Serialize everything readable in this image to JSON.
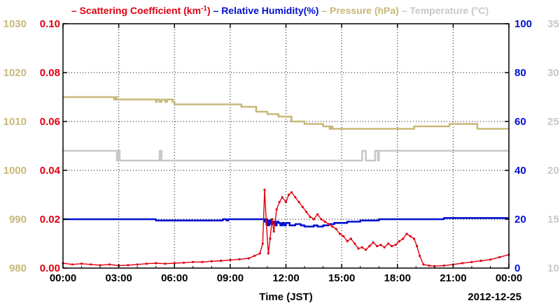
{
  "chart_data": {
    "type": "line",
    "legend": {
      "placement": "top",
      "entries": [
        {
          "name": "Scattering Coefficient (km",
          "sup": "-1",
          "suffix": ")",
          "color": "#e00010",
          "axis": "y_left_inner"
        },
        {
          "name": "Relative Humidity(%)",
          "sup": "",
          "suffix": "",
          "color": "#0010d0",
          "axis": "y_right_inner"
        },
        {
          "name": "Pressure (hPa)",
          "sup": "",
          "suffix": "",
          "color": "#c8b878",
          "axis": "y_left_outer"
        },
        {
          "name": "Temperature (°C)",
          "sup": "",
          "suffix": "",
          "color": "#c8c8c8",
          "axis": "y_right_outer"
        }
      ]
    },
    "xlabel": "Time (JST)",
    "date_label": "2012-12-25",
    "x_ticks": [
      "00:00",
      "03:00",
      "06:00",
      "09:00",
      "12:00",
      "15:00",
      "18:00",
      "21:00",
      "00:00"
    ],
    "xlim_hours": [
      0,
      24
    ],
    "grid": true,
    "axes": {
      "y_left_outer": {
        "ticks": [
          "980",
          "990",
          "1000",
          "1010",
          "1020",
          "1030"
        ],
        "lim": [
          980,
          1030
        ],
        "color": "#c8b878"
      },
      "y_left_inner": {
        "ticks": [
          "0.00",
          "0.02",
          "0.04",
          "0.06",
          "0.08",
          "0.10"
        ],
        "lim": [
          0,
          0.1
        ],
        "color": "#e00010"
      },
      "y_right_inner": {
        "ticks": [
          "0",
          "20",
          "40",
          "60",
          "80",
          "100"
        ],
        "lim": [
          0,
          100
        ],
        "color": "#0010d0"
      },
      "y_right_outer": {
        "ticks": [
          "10",
          "15",
          "20",
          "25",
          "30",
          "35"
        ],
        "lim": [
          10,
          35
        ],
        "color": "#c8c8c8"
      }
    },
    "series": [
      {
        "name": "Pressure (hPa)",
        "axis": "y_left_outer",
        "color": "#c8b878",
        "step": true,
        "x": [
          0,
          2.7,
          2.75,
          2.85,
          2.9,
          4.8,
          5.0,
          5.05,
          5.2,
          5.3,
          5.5,
          5.6,
          5.9,
          6.0,
          9.5,
          9.6,
          10.3,
          10.4,
          10.9,
          11.0,
          11.5,
          11.6,
          12.2,
          12.3,
          12.9,
          13.0,
          13.9,
          14.0,
          14.3,
          14.35,
          14.45,
          14.5,
          18.8,
          18.9,
          20.7,
          20.8,
          22.2,
          22.3,
          24
        ],
        "y": [
          1015,
          1015,
          1014.5,
          1015,
          1014.5,
          1014.5,
          1014,
          1014.5,
          1014,
          1014.5,
          1014,
          1014.5,
          1014,
          1013.5,
          1013.5,
          1013,
          1013,
          1012,
          1012,
          1011.5,
          1011.5,
          1011,
          1011,
          1010,
          1010,
          1009.5,
          1009.5,
          1009,
          1009,
          1008.5,
          1009,
          1008.5,
          1008.5,
          1009,
          1009,
          1009.5,
          1009.5,
          1008.5,
          1008.5
        ]
      },
      {
        "name": "Temperature (°C)",
        "axis": "y_right_outer",
        "color": "#c8c8c8",
        "step": true,
        "x": [
          0,
          2.85,
          2.9,
          2.95,
          3.05,
          5.1,
          5.2,
          5.3,
          16.0,
          16.1,
          16.3,
          16.7,
          16.8,
          16.95,
          17.0,
          24
        ],
        "y": [
          22,
          22,
          21,
          22,
          21,
          21,
          22,
          21,
          21,
          22,
          21,
          21,
          22,
          21,
          22,
          22
        ]
      },
      {
        "name": "Relative Humidity(%)",
        "axis": "y_right_inner",
        "color": "#0010d0",
        "step": true,
        "x": [
          0,
          4.9,
          5.0,
          8.5,
          8.6,
          8.8,
          8.9,
          9.0,
          10.8,
          10.85,
          10.9,
          11.0,
          11.1,
          11.2,
          11.3,
          11.4,
          11.5,
          11.6,
          11.7,
          11.8,
          11.9,
          12.0,
          12.2,
          12.5,
          12.8,
          13.0,
          13.3,
          13.5,
          13.7,
          14.0,
          14.3,
          14.6,
          15.0,
          15.3,
          15.6,
          16.0,
          16.5,
          17.0,
          17.5,
          18.0,
          18.5,
          19.0,
          19.5,
          20.0,
          20.5,
          21.0,
          21.5,
          22.0,
          22.5,
          23.0,
          23.5,
          24
        ],
        "y": [
          20,
          20,
          19.5,
          19.5,
          20,
          19.5,
          20,
          20,
          20,
          19,
          20,
          17.5,
          19.5,
          18,
          19,
          17.5,
          19,
          18.5,
          17.5,
          18.5,
          17.5,
          18.5,
          17.5,
          18,
          17.5,
          17,
          17,
          17.5,
          17,
          17.5,
          18,
          18.5,
          18.5,
          19,
          19,
          19.5,
          19.5,
          20,
          20,
          20,
          20,
          20,
          20,
          20,
          20.5,
          20.5,
          20.5,
          20.5,
          20.5,
          20.5,
          20.5,
          20.5
        ]
      },
      {
        "name": "Scattering Coefficient",
        "axis": "y_left_inner",
        "color": "#e00010",
        "step": false,
        "x": [
          0,
          0.5,
          1.0,
          1.5,
          2.0,
          2.5,
          3.0,
          3.5,
          4.0,
          4.5,
          5.0,
          5.5,
          6.0,
          6.5,
          7.0,
          7.5,
          8.0,
          8.5,
          9.0,
          9.5,
          10.0,
          10.3,
          10.6,
          10.75,
          10.85,
          10.95,
          11.05,
          11.15,
          11.25,
          11.35,
          11.5,
          11.65,
          11.8,
          12.0,
          12.15,
          12.3,
          12.5,
          12.7,
          12.9,
          13.1,
          13.3,
          13.5,
          13.7,
          13.9,
          14.1,
          14.3,
          14.5,
          14.7,
          14.9,
          15.1,
          15.3,
          15.5,
          15.7,
          15.9,
          16.1,
          16.3,
          16.5,
          16.7,
          16.9,
          17.1,
          17.3,
          17.5,
          17.7,
          17.9,
          18.1,
          18.3,
          18.5,
          18.7,
          18.9,
          19.05,
          19.2,
          19.4,
          19.7,
          20.0,
          20.5,
          21.0,
          21.5,
          22.0,
          22.5,
          23.0,
          23.5,
          24.0
        ],
        "y": [
          0.002,
          0.0015,
          0.0018,
          0.0015,
          0.0012,
          0.0015,
          0.001,
          0.0012,
          0.0015,
          0.0018,
          0.002,
          0.0018,
          0.002,
          0.0022,
          0.0025,
          0.0025,
          0.0028,
          0.003,
          0.0033,
          0.0036,
          0.004,
          0.005,
          0.006,
          0.01,
          0.032,
          0.018,
          0.006,
          0.012,
          0.02,
          0.015,
          0.024,
          0.027,
          0.029,
          0.027,
          0.03,
          0.031,
          0.029,
          0.027,
          0.025,
          0.023,
          0.021,
          0.02,
          0.022,
          0.02,
          0.019,
          0.018,
          0.017,
          0.016,
          0.014,
          0.013,
          0.011,
          0.012,
          0.01,
          0.008,
          0.0085,
          0.0075,
          0.009,
          0.0105,
          0.009,
          0.0095,
          0.0085,
          0.01,
          0.009,
          0.0095,
          0.011,
          0.012,
          0.014,
          0.013,
          0.012,
          0.009,
          0.005,
          0.0015,
          0.001,
          0.0008,
          0.001,
          0.0015,
          0.002,
          0.0025,
          0.003,
          0.0035,
          0.0045,
          0.0055
        ]
      }
    ]
  }
}
